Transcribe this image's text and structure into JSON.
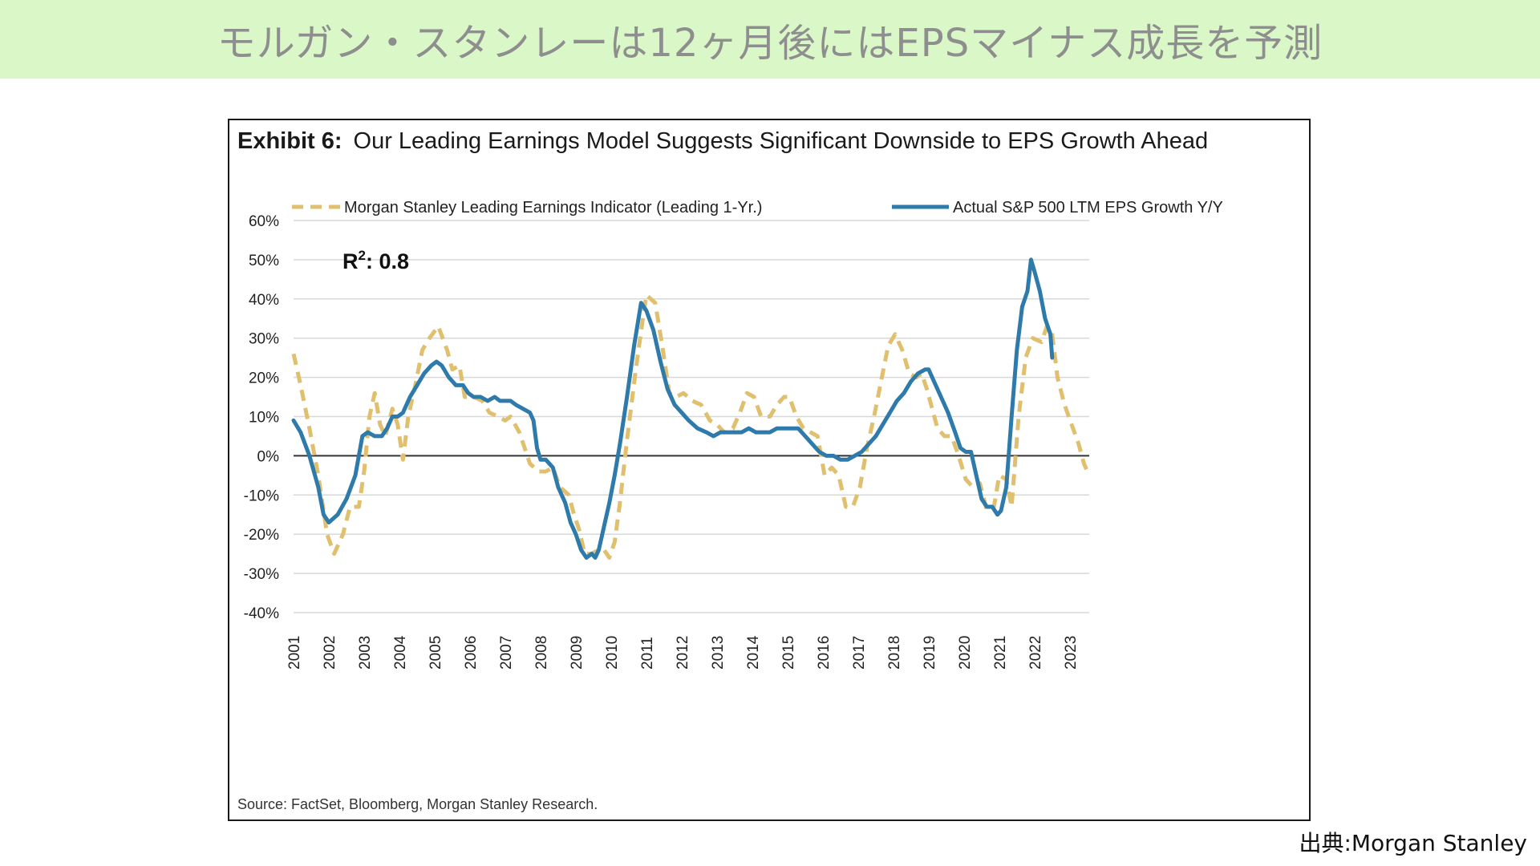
{
  "banner": {
    "title": "モルガン・スタンレーは12ヶ月後にはEPSマイナス成長を予測"
  },
  "credit": "出典:Morgan Stanley",
  "chart_data": {
    "type": "line",
    "title_label": "Exhibit 6:",
    "title": "Our Leading Earnings Model Suggests Significant Downside to EPS Growth Ahead",
    "source": "Source: FactSet, Bloomberg, Morgan Stanley Research.",
    "annotation": {
      "base": "R",
      "superscript": "2",
      "rest": ": 0.8"
    },
    "ylim": [
      -40,
      60
    ],
    "xlim": [
      2001,
      2023.55
    ],
    "yticks": [
      "60%",
      "50%",
      "40%",
      "30%",
      "20%",
      "10%",
      "0%",
      "-10%",
      "-20%",
      "-30%",
      "-40%"
    ],
    "ytick_values": [
      60,
      50,
      40,
      30,
      20,
      10,
      0,
      -10,
      -20,
      -30,
      -40
    ],
    "xticks": [
      "2001",
      "2002",
      "2003",
      "2004",
      "2005",
      "2006",
      "2007",
      "2008",
      "2009",
      "2010",
      "2011",
      "2012",
      "2013",
      "2014",
      "2015",
      "2016",
      "2017",
      "2018",
      "2019",
      "2020",
      "2021",
      "2022",
      "2023"
    ],
    "grid": true,
    "legend_position": "top",
    "series": [
      {
        "name": "Morgan Stanley Leading Earnings Indicator (Leading 1-Yr.)",
        "color": "#e0c06e",
        "style": "dashed",
        "points": [
          [
            2001.0,
            26
          ],
          [
            2001.2,
            18
          ],
          [
            2001.45,
            7
          ],
          [
            2001.7,
            -5
          ],
          [
            2001.95,
            -20
          ],
          [
            2002.15,
            -25
          ],
          [
            2002.4,
            -20
          ],
          [
            2002.6,
            -13
          ],
          [
            2002.85,
            -13
          ],
          [
            2003.0,
            -4
          ],
          [
            2003.15,
            10
          ],
          [
            2003.3,
            16
          ],
          [
            2003.45,
            8
          ],
          [
            2003.6,
            5
          ],
          [
            2003.8,
            12
          ],
          [
            2003.95,
            8
          ],
          [
            2004.1,
            -1
          ],
          [
            2004.25,
            10
          ],
          [
            2004.45,
            18
          ],
          [
            2004.65,
            27
          ],
          [
            2004.85,
            30
          ],
          [
            2005.1,
            33
          ],
          [
            2005.35,
            27
          ],
          [
            2005.5,
            22
          ],
          [
            2005.7,
            23
          ],
          [
            2005.85,
            15
          ],
          [
            2006.1,
            15
          ],
          [
            2006.35,
            14
          ],
          [
            2006.55,
            11
          ],
          [
            2006.8,
            10
          ],
          [
            2007.0,
            9
          ],
          [
            2007.15,
            10
          ],
          [
            2007.4,
            6
          ],
          [
            2007.55,
            2
          ],
          [
            2007.7,
            -2
          ],
          [
            2007.95,
            -4
          ],
          [
            2008.15,
            -4
          ],
          [
            2008.35,
            -3
          ],
          [
            2008.55,
            -8
          ],
          [
            2008.8,
            -10
          ],
          [
            2008.95,
            -15
          ],
          [
            2009.1,
            -19
          ],
          [
            2009.25,
            -25
          ],
          [
            2009.45,
            -25
          ],
          [
            2009.65,
            -24
          ],
          [
            2009.8,
            -24
          ],
          [
            2009.95,
            -26
          ],
          [
            2010.1,
            -22
          ],
          [
            2010.25,
            -12
          ],
          [
            2010.45,
            4
          ],
          [
            2010.7,
            22
          ],
          [
            2010.9,
            35
          ],
          [
            2011.0,
            41
          ],
          [
            2011.25,
            39
          ],
          [
            2011.45,
            28
          ],
          [
            2011.65,
            16
          ],
          [
            2011.85,
            15
          ],
          [
            2012.05,
            16
          ],
          [
            2012.3,
            14
          ],
          [
            2012.55,
            13
          ],
          [
            2012.8,
            9
          ],
          [
            2013.0,
            8
          ],
          [
            2013.2,
            6
          ],
          [
            2013.45,
            7
          ],
          [
            2013.65,
            11
          ],
          [
            2013.85,
            16
          ],
          [
            2014.05,
            15
          ],
          [
            2014.25,
            10
          ],
          [
            2014.5,
            10
          ],
          [
            2014.7,
            13
          ],
          [
            2014.9,
            15
          ],
          [
            2015.05,
            15
          ],
          [
            2015.25,
            10
          ],
          [
            2015.45,
            7
          ],
          [
            2015.65,
            6
          ],
          [
            2015.85,
            5
          ],
          [
            2016.05,
            -5
          ],
          [
            2016.25,
            -3
          ],
          [
            2016.45,
            -5
          ],
          [
            2016.65,
            -13
          ],
          [
            2016.85,
            -13
          ],
          [
            2017.05,
            -8
          ],
          [
            2017.25,
            2
          ],
          [
            2017.45,
            10
          ],
          [
            2017.65,
            19
          ],
          [
            2017.85,
            28
          ],
          [
            2018.05,
            31
          ],
          [
            2018.25,
            27
          ],
          [
            2018.45,
            21
          ],
          [
            2018.65,
            20
          ],
          [
            2018.8,
            21
          ],
          [
            2018.95,
            17
          ],
          [
            2019.1,
            12
          ],
          [
            2019.25,
            7
          ],
          [
            2019.45,
            5
          ],
          [
            2019.65,
            5
          ],
          [
            2019.85,
            0
          ],
          [
            2020.05,
            -6
          ],
          [
            2020.25,
            -8
          ],
          [
            2020.45,
            -7
          ],
          [
            2020.65,
            -14
          ],
          [
            2020.85,
            -13
          ],
          [
            2021.0,
            -5
          ],
          [
            2021.2,
            -6
          ],
          [
            2021.35,
            -13
          ],
          [
            2021.55,
            10
          ],
          [
            2021.75,
            25
          ],
          [
            2021.95,
            30
          ],
          [
            2022.2,
            29
          ],
          [
            2022.35,
            33
          ],
          [
            2022.5,
            31
          ],
          [
            2022.65,
            20
          ],
          [
            2022.85,
            13
          ],
          [
            2023.05,
            8
          ],
          [
            2023.25,
            3
          ],
          [
            2023.4,
            -2
          ],
          [
            2023.55,
            -5
          ]
        ]
      },
      {
        "name": "Actual S&P 500 LTM EPS Growth Y/Y",
        "color": "#2e7bab",
        "style": "solid",
        "points": [
          [
            2001.0,
            9
          ],
          [
            2001.2,
            6
          ],
          [
            2001.45,
            0
          ],
          [
            2001.7,
            -8
          ],
          [
            2001.85,
            -15
          ],
          [
            2002.0,
            -17
          ],
          [
            2002.25,
            -15
          ],
          [
            2002.5,
            -11
          ],
          [
            2002.75,
            -5
          ],
          [
            2002.95,
            5
          ],
          [
            2003.1,
            6
          ],
          [
            2003.3,
            5
          ],
          [
            2003.5,
            5
          ],
          [
            2003.65,
            7
          ],
          [
            2003.8,
            10
          ],
          [
            2003.95,
            10
          ],
          [
            2004.1,
            11
          ],
          [
            2004.3,
            15
          ],
          [
            2004.5,
            18
          ],
          [
            2004.7,
            21
          ],
          [
            2004.9,
            23
          ],
          [
            2005.05,
            24
          ],
          [
            2005.2,
            23
          ],
          [
            2005.4,
            20
          ],
          [
            2005.6,
            18
          ],
          [
            2005.8,
            18
          ],
          [
            2005.95,
            16
          ],
          [
            2006.1,
            15
          ],
          [
            2006.3,
            15
          ],
          [
            2006.5,
            14
          ],
          [
            2006.7,
            15
          ],
          [
            2006.85,
            14
          ],
          [
            2007.0,
            14
          ],
          [
            2007.15,
            14
          ],
          [
            2007.3,
            13
          ],
          [
            2007.5,
            12
          ],
          [
            2007.7,
            11
          ],
          [
            2007.8,
            9
          ],
          [
            2007.9,
            2
          ],
          [
            2008.0,
            -1
          ],
          [
            2008.15,
            -1
          ],
          [
            2008.35,
            -3
          ],
          [
            2008.5,
            -8
          ],
          [
            2008.7,
            -12
          ],
          [
            2008.85,
            -17
          ],
          [
            2009.0,
            -20
          ],
          [
            2009.15,
            -24
          ],
          [
            2009.3,
            -26
          ],
          [
            2009.45,
            -25
          ],
          [
            2009.55,
            -26
          ],
          [
            2009.65,
            -24
          ],
          [
            2009.8,
            -18
          ],
          [
            2009.95,
            -12
          ],
          [
            2010.1,
            -5
          ],
          [
            2010.25,
            3
          ],
          [
            2010.45,
            15
          ],
          [
            2010.65,
            28
          ],
          [
            2010.85,
            39
          ],
          [
            2011.0,
            37
          ],
          [
            2011.2,
            32
          ],
          [
            2011.4,
            24
          ],
          [
            2011.6,
            17
          ],
          [
            2011.8,
            13
          ],
          [
            2012.0,
            11
          ],
          [
            2012.2,
            9
          ],
          [
            2012.45,
            7
          ],
          [
            2012.7,
            6
          ],
          [
            2012.9,
            5
          ],
          [
            2013.1,
            6
          ],
          [
            2013.3,
            6
          ],
          [
            2013.5,
            6
          ],
          [
            2013.7,
            6
          ],
          [
            2013.9,
            7
          ],
          [
            2014.1,
            6
          ],
          [
            2014.3,
            6
          ],
          [
            2014.5,
            6
          ],
          [
            2014.7,
            7
          ],
          [
            2014.9,
            7
          ],
          [
            2015.1,
            7
          ],
          [
            2015.3,
            7
          ],
          [
            2015.5,
            5
          ],
          [
            2015.7,
            3
          ],
          [
            2015.9,
            1
          ],
          [
            2016.1,
            0
          ],
          [
            2016.3,
            0
          ],
          [
            2016.5,
            -1
          ],
          [
            2016.7,
            -1
          ],
          [
            2016.9,
            0
          ],
          [
            2017.1,
            1
          ],
          [
            2017.3,
            3
          ],
          [
            2017.5,
            5
          ],
          [
            2017.7,
            8
          ],
          [
            2017.9,
            11
          ],
          [
            2018.1,
            14
          ],
          [
            2018.3,
            16
          ],
          [
            2018.5,
            19
          ],
          [
            2018.7,
            21
          ],
          [
            2018.9,
            22
          ],
          [
            2019.0,
            22
          ],
          [
            2019.15,
            19
          ],
          [
            2019.35,
            15
          ],
          [
            2019.55,
            11
          ],
          [
            2019.75,
            6
          ],
          [
            2019.9,
            2
          ],
          [
            2020.05,
            1
          ],
          [
            2020.2,
            1
          ],
          [
            2020.35,
            -5
          ],
          [
            2020.5,
            -11
          ],
          [
            2020.65,
            -13
          ],
          [
            2020.8,
            -13
          ],
          [
            2020.95,
            -15
          ],
          [
            2021.05,
            -14
          ],
          [
            2021.2,
            -8
          ],
          [
            2021.35,
            10
          ],
          [
            2021.5,
            27
          ],
          [
            2021.65,
            38
          ],
          [
            2021.8,
            42
          ],
          [
            2021.9,
            50
          ],
          [
            2022.0,
            47
          ],
          [
            2022.15,
            42
          ],
          [
            2022.3,
            35
          ],
          [
            2022.45,
            31
          ],
          [
            2022.5,
            25
          ]
        ]
      }
    ]
  }
}
